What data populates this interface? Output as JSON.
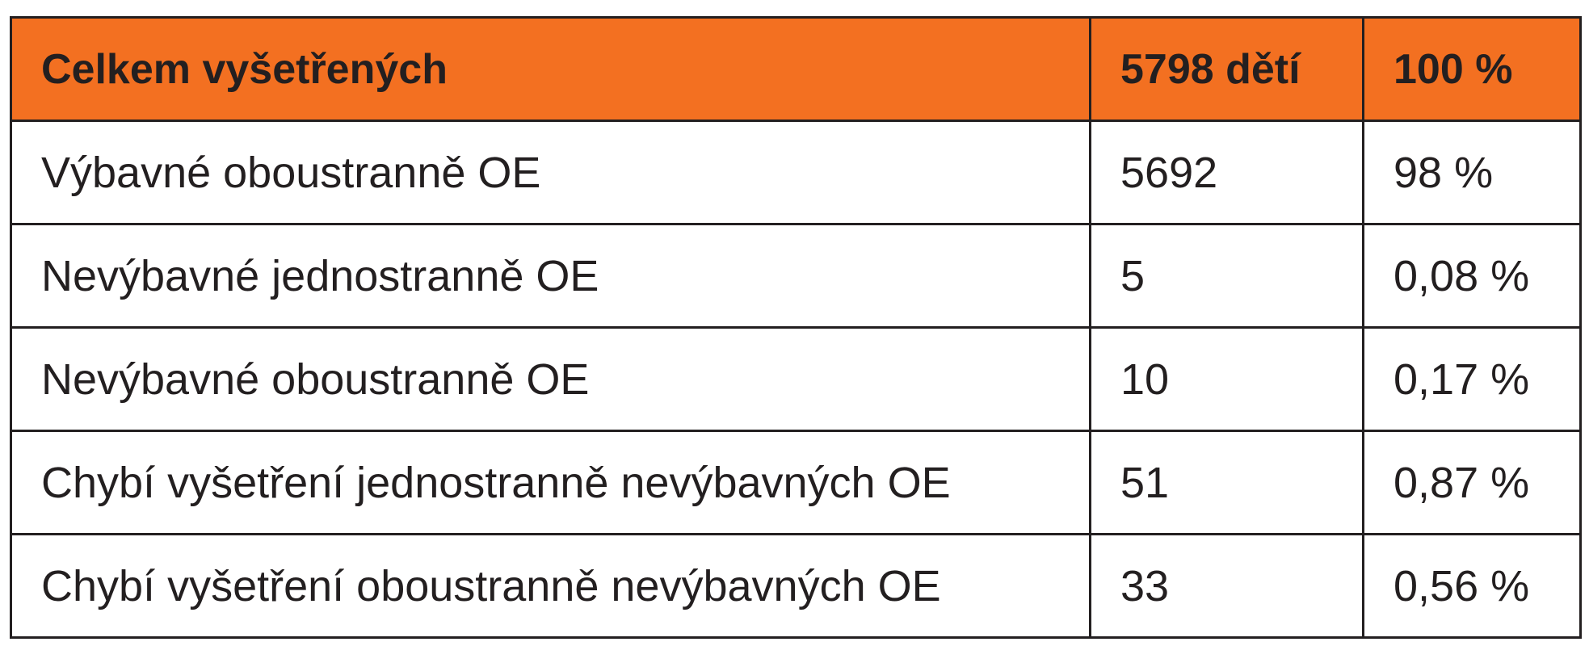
{
  "table": {
    "header": {
      "label": "Celkem vyšetřených",
      "count": "5798 dětí",
      "percent": "100 %"
    },
    "rows": [
      {
        "label": "Výbavné oboustranně OE",
        "count": "5692",
        "percent": "98 %"
      },
      {
        "label": "Nevýbavné jednostranně OE",
        "count": "5",
        "percent": "0,08 %"
      },
      {
        "label": "Nevýbavné oboustranně OE",
        "count": "10",
        "percent": "0,17 %"
      },
      {
        "label": "Chybí vyšetření jednostranně nevýbavných OE",
        "count": "51",
        "percent": "0,87 %"
      },
      {
        "label": "Chybí vyšetření oboustranně nevýbavných OE",
        "count": "33",
        "percent": "0,56 %"
      }
    ]
  },
  "colors": {
    "header_background": "#f37021",
    "text": "#231f20",
    "border": "#231f20"
  }
}
